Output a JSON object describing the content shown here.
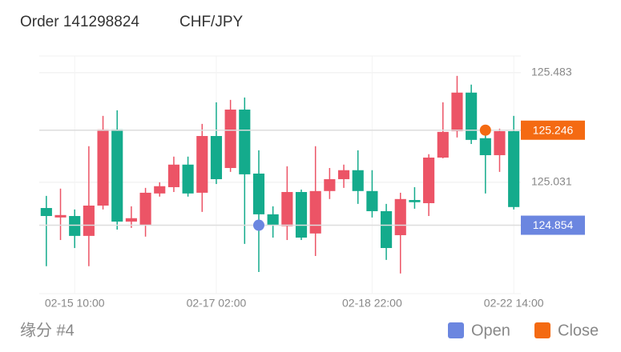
{
  "header": {
    "order": "Order 141298824",
    "pair": "CHF/JPY"
  },
  "chart_data": {
    "type": "candlestick",
    "categories": [
      null,
      null,
      "02-15 10:00",
      null,
      null,
      null,
      null,
      null,
      null,
      null,
      null,
      null,
      "02-17 02:00",
      null,
      null,
      null,
      null,
      null,
      null,
      null,
      null,
      null,
      null,
      "02-18 22:00",
      null,
      null,
      null,
      null,
      null,
      null,
      null,
      null,
      null,
      "02-22 14:00"
    ],
    "open": [
      124.925,
      124.886,
      124.892,
      124.81,
      124.935,
      125.249,
      124.869,
      124.856,
      124.985,
      125.011,
      125.104,
      124.988,
      125.222,
      125.09,
      125.331,
      125.067,
      124.899,
      124.85,
      124.991,
      124.82,
      124.995,
      125.044,
      125.081,
      124.995,
      124.912,
      124.813,
      124.958,
      124.945,
      125.133,
      125.242,
      125.401,
      125.213,
      125.143,
      125.242
    ],
    "close": [
      124.892,
      124.896,
      124.81,
      124.935,
      125.249,
      124.869,
      124.883,
      124.988,
      125.015,
      125.104,
      124.985,
      125.222,
      125.044,
      125.331,
      125.064,
      124.899,
      124.853,
      124.991,
      124.803,
      124.995,
      125.044,
      125.081,
      124.995,
      124.912,
      124.76,
      124.962,
      124.949,
      125.133,
      125.239,
      125.401,
      125.206,
      125.143,
      125.242,
      124.929
    ],
    "high": [
      124.975,
      125.005,
      124.919,
      125.18,
      125.305,
      125.328,
      124.932,
      125.008,
      125.031,
      125.137,
      125.137,
      125.272,
      125.361,
      125.371,
      125.381,
      125.163,
      124.932,
      125.097,
      125.001,
      125.18,
      125.09,
      125.104,
      125.163,
      125.081,
      124.942,
      124.988,
      125.011,
      125.147,
      125.361,
      125.47,
      125.434,
      125.236,
      125.252,
      125.305
    ],
    "low": [
      124.685,
      124.793,
      124.76,
      124.685,
      124.919,
      124.836,
      124.843,
      124.807,
      124.972,
      124.991,
      124.972,
      124.909,
      125.024,
      125.074,
      124.777,
      124.661,
      124.803,
      124.793,
      124.793,
      124.727,
      124.962,
      125.008,
      124.942,
      124.886,
      124.711,
      124.655,
      124.922,
      124.892,
      125.13,
      125.216,
      125.189,
      124.985,
      125.074,
      124.919
    ],
    "up_color": "#ec5466",
    "down_color": "#14ab8c",
    "ylim": [
      124.572,
      125.552
    ],
    "yticks": [
      125.031,
      125.483
    ],
    "grid": true,
    "open_marker": {
      "name": "Open",
      "value": 124.854,
      "category_index": 15,
      "color": "#6b86e0"
    },
    "close_marker": {
      "name": "Close",
      "value": 125.246,
      "category_index": 31,
      "color": "#f46a12"
    }
  },
  "footer": {
    "label": "缘分 #4"
  }
}
